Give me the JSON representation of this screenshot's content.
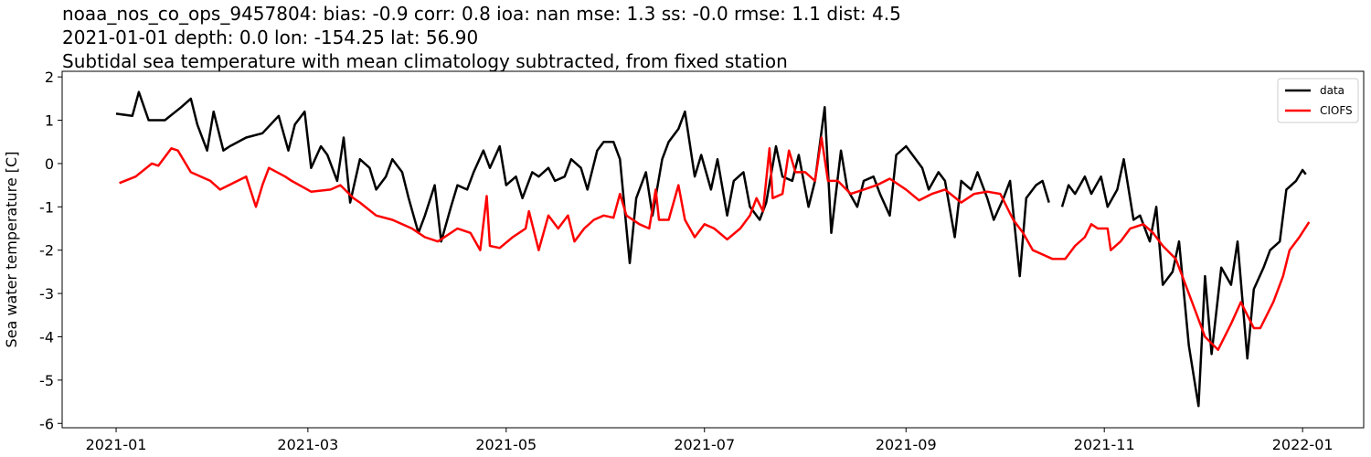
{
  "chart_data": {
    "type": "line",
    "title": [
      "noaa_nos_co_ops_9457804: bias: -0.9  corr: 0.8  ioa: nan  mse: 1.3  ss: -0.0  rmse: 1.1  dist: 4.5",
      "2021-01-01 depth: 0.0 lon: -154.25 lat: 56.90",
      "Subtidal sea temperature with mean climatology subtracted, from fixed station"
    ],
    "y_label": "Sea water temperature [C]",
    "xlim": [
      -16.6,
      383.8
    ],
    "xticks": [
      {
        "value": 0,
        "label": "2021-01"
      },
      {
        "value": 59,
        "label": "2021-03"
      },
      {
        "value": 120,
        "label": "2021-05"
      },
      {
        "value": 181,
        "label": "2021-07"
      },
      {
        "value": 243,
        "label": "2021-09"
      },
      {
        "value": 304,
        "label": "2021-11"
      },
      {
        "value": 365,
        "label": "2022-01"
      }
    ],
    "ylim": [
      -6.1,
      2.13
    ],
    "yticks": [
      -6,
      -5,
      -4,
      -3,
      -2,
      -1,
      0,
      1,
      2
    ],
    "grid": false,
    "legend": "upper right",
    "series": [
      {
        "name": "data",
        "color": "#000000",
        "x": [
          0,
          5,
          7,
          10,
          15,
          20,
          23,
          25,
          28,
          30,
          33,
          35,
          40,
          45,
          50,
          53,
          55,
          58,
          60,
          63,
          65,
          68,
          70,
          72,
          75,
          78,
          80,
          83,
          85,
          88,
          90,
          93,
          95,
          98,
          100,
          103,
          105,
          108,
          110,
          113,
          115,
          118,
          120,
          123,
          125,
          128,
          130,
          133,
          135,
          138,
          140,
          143,
          145,
          148,
          150,
          153,
          155,
          158,
          160,
          163,
          165,
          168,
          170,
          173,
          175,
          178,
          180,
          183,
          185,
          188,
          190,
          193,
          195,
          198,
          200,
          203,
          205,
          208,
          210,
          213,
          215,
          218,
          220,
          223,
          225,
          228,
          230,
          233,
          235,
          238,
          240,
          243,
          245,
          248,
          250,
          253,
          255,
          258,
          260,
          263,
          265,
          268,
          270,
          273,
          275,
          278,
          280,
          283,
          285,
          287,
          289,
          291,
          293,
          295,
          298,
          300,
          303,
          305,
          308,
          310,
          313,
          315,
          318,
          320,
          322,
          325,
          327,
          330,
          333,
          335,
          337,
          340,
          343,
          345,
          348,
          350,
          353,
          355,
          358,
          360,
          363,
          365,
          366
        ],
        "values": [
          1.15,
          1.1,
          1.65,
          1.0,
          1.0,
          1.3,
          1.5,
          0.9,
          0.3,
          1.2,
          0.3,
          0.4,
          0.6,
          0.7,
          1.1,
          0.3,
          0.9,
          1.2,
          -0.1,
          0.4,
          0.2,
          -0.4,
          0.6,
          -0.9,
          0.1,
          -0.1,
          -0.6,
          -0.3,
          0.1,
          -0.2,
          -0.8,
          -1.6,
          -1.2,
          -0.5,
          -1.8,
          -1.0,
          -0.5,
          -0.6,
          -0.2,
          0.3,
          -0.1,
          0.4,
          -0.5,
          -0.3,
          -0.8,
          -0.2,
          -0.3,
          -0.1,
          -0.4,
          -0.3,
          0.1,
          -0.1,
          -0.6,
          0.3,
          0.5,
          0.5,
          0.1,
          -2.3,
          -0.8,
          -0.2,
          -1.2,
          0.1,
          0.5,
          0.8,
          1.2,
          -0.3,
          0.2,
          -0.6,
          0.1,
          -1.2,
          -0.4,
          -0.2,
          -1.0,
          -1.3,
          -0.9,
          0.4,
          -0.3,
          -0.4,
          0.2,
          -1.0,
          -0.4,
          1.3,
          -1.6,
          0.3,
          -0.6,
          -1.0,
          -0.4,
          -0.3,
          -0.7,
          -1.2,
          0.2,
          0.4,
          0.2,
          -0.1,
          -0.6,
          -0.2,
          -0.4,
          -1.7,
          -0.4,
          -0.6,
          -0.2,
          -0.8,
          -1.3,
          -0.8,
          -0.4,
          -2.6,
          -0.8,
          -0.5,
          -0.4,
          -0.9,
          null,
          -1.0,
          -0.5,
          -0.7,
          -0.3,
          -0.7,
          -0.3,
          -1.0,
          -0.6,
          0.1,
          -1.3,
          -1.2,
          -1.8,
          -1.0,
          -2.8,
          -2.5,
          -1.8,
          -4.2,
          -5.6,
          -2.6,
          -4.4,
          -2.4,
          -2.8,
          -1.8,
          -4.5,
          -2.9,
          -2.4,
          -2.0,
          -1.8,
          -0.6,
          -0.4,
          -0.15,
          -0.25
        ]
      },
      {
        "name": "CIOFS",
        "color": "#ff0000",
        "x": [
          1,
          6,
          11,
          13,
          17,
          19,
          23,
          29,
          32,
          36,
          40,
          43,
          45,
          47,
          52,
          54,
          60,
          66,
          69,
          73,
          75,
          80,
          85,
          91,
          95,
          99,
          105,
          109,
          112,
          114,
          115,
          118,
          122,
          126,
          127,
          130,
          133,
          136,
          139,
          141,
          144,
          147,
          150,
          153,
          155,
          157,
          161,
          164,
          166,
          167,
          170,
          173,
          175,
          178,
          181,
          184,
          188,
          192,
          195,
          197,
          199,
          201,
          202,
          205,
          207,
          209,
          212,
          215,
          217,
          219,
          222,
          226,
          230,
          234,
          238,
          243,
          247,
          251,
          255,
          260,
          264,
          268,
          272,
          276,
          279,
          282,
          285,
          288,
          292,
          295,
          298,
          300,
          302,
          305,
          306,
          309,
          312,
          316,
          319,
          322,
          326,
          329,
          332,
          335,
          339,
          343,
          346,
          350,
          352,
          356,
          359,
          361,
          364,
          367
        ],
        "values": [
          -0.45,
          -0.3,
          0.0,
          -0.05,
          0.35,
          0.3,
          -0.2,
          -0.4,
          -0.6,
          -0.45,
          -0.3,
          -1.0,
          -0.5,
          -0.1,
          -0.3,
          -0.4,
          -0.65,
          -0.6,
          -0.5,
          -0.8,
          -0.9,
          -1.2,
          -1.3,
          -1.5,
          -1.7,
          -1.8,
          -1.5,
          -1.6,
          -2.0,
          -0.75,
          -1.9,
          -1.95,
          -1.7,
          -1.5,
          -1.1,
          -2.0,
          -1.2,
          -1.5,
          -1.2,
          -1.8,
          -1.5,
          -1.3,
          -1.2,
          -1.25,
          -0.7,
          -1.2,
          -1.4,
          -1.5,
          -0.6,
          -1.3,
          -1.3,
          -0.5,
          -1.3,
          -1.7,
          -1.4,
          -1.5,
          -1.75,
          -1.5,
          -1.2,
          -0.8,
          -1.1,
          0.35,
          -0.8,
          -0.7,
          0.3,
          -0.2,
          -0.2,
          -0.4,
          0.6,
          -0.4,
          -0.4,
          -0.7,
          -0.6,
          -0.5,
          -0.35,
          -0.6,
          -0.85,
          -0.7,
          -0.6,
          -0.9,
          -0.7,
          -0.65,
          -0.7,
          -1.3,
          -1.6,
          -2.0,
          -2.1,
          -2.2,
          -2.2,
          -1.9,
          -1.7,
          -1.4,
          -1.5,
          -1.5,
          -2.0,
          -1.8,
          -1.5,
          -1.4,
          -1.6,
          -1.9,
          -2.2,
          -2.8,
          -3.4,
          -4.0,
          -4.3,
          -3.7,
          -3.2,
          -3.8,
          -3.8,
          -3.2,
          -2.6,
          -2.0,
          -1.7,
          -1.35
        ]
      }
    ]
  }
}
